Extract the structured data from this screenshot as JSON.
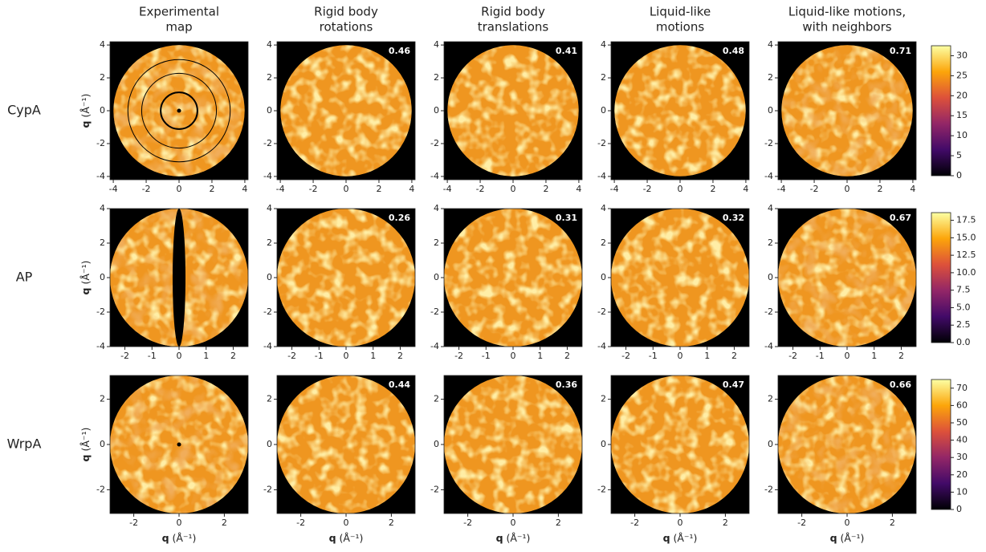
{
  "columns": [
    [
      "Experimental",
      "map"
    ],
    [
      "Rigid body",
      "rotations"
    ],
    [
      "Rigid body",
      "translations"
    ],
    [
      "Liquid-like",
      "motions"
    ],
    [
      "Liquid-like motions,",
      "with neighbors"
    ]
  ],
  "axis_label": {
    "symbol": "q",
    "unit": "(Å⁻¹)"
  },
  "rows": [
    {
      "name": "CypA",
      "xlim": [
        -4.2,
        4.2
      ],
      "ylim": [
        -4.2,
        4.2
      ],
      "xticks": [
        -4,
        -2,
        0,
        2,
        4
      ],
      "yticks": [
        -4,
        -2,
        0,
        2,
        4
      ],
      "correlations": [
        0.46,
        0.41,
        0.48,
        0.71
      ],
      "colorbar": {
        "lim": [
          0,
          32.5
        ],
        "ticks": [
          0,
          5,
          10,
          15,
          20,
          25,
          30
        ]
      }
    },
    {
      "name": "AP",
      "xlim": [
        -2.55,
        2.55
      ],
      "ylim": [
        -4,
        4
      ],
      "xticks": [
        -2,
        -1,
        0,
        1,
        2
      ],
      "yticks": [
        -4,
        -2,
        0,
        2,
        4
      ],
      "correlations": [
        0.26,
        0.31,
        0.32,
        0.67
      ],
      "colorbar": {
        "lim": [
          0,
          18.6
        ],
        "ticks": [
          {
            "value": 0,
            "label": "0.0"
          },
          2.5,
          {
            "value": 5,
            "label": "5.0"
          },
          7.5,
          {
            "value": 10,
            "label": "10.0"
          },
          12.5,
          {
            "value": 15,
            "label": "15.0"
          },
          17.5
        ]
      }
    },
    {
      "name": "WrpA",
      "xlim": [
        -3.05,
        3.05
      ],
      "ylim": [
        -3.05,
        3.05
      ],
      "xticks": [
        -2,
        0,
        2
      ],
      "yticks": [
        -2,
        0,
        2
      ],
      "correlations": [
        0.44,
        0.36,
        0.47,
        0.66
      ],
      "colorbar": {
        "lim": [
          0,
          75
        ],
        "ticks": [
          0,
          10,
          20,
          30,
          40,
          50,
          60,
          70
        ]
      }
    }
  ]
}
